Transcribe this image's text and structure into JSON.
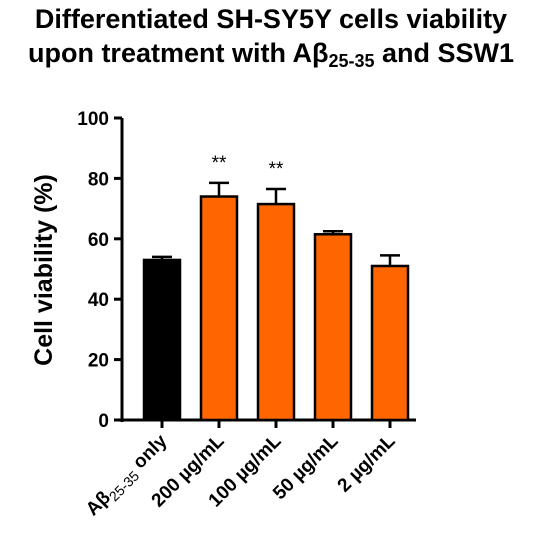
{
  "chart_data": {
    "type": "bar",
    "title_line1": "Differentiated SH-SY5Y cells viability",
    "title_line2_pre": "upon treatment with Aβ",
    "title_line2_sub": "25-35",
    "title_line2_post": " and SSW1",
    "xlabel": "",
    "ylabel": "Cell viability (%)",
    "ylim": [
      0,
      100
    ],
    "yticks": [
      "0",
      "20",
      "40",
      "60",
      "80",
      "100"
    ],
    "categories": [
      {
        "pre": "Aβ",
        "sub": "25-35",
        "post": " only"
      },
      {
        "pre": "200 µg/mL",
        "sub": "",
        "post": ""
      },
      {
        "pre": "100 µg/mL",
        "sub": "",
        "post": ""
      },
      {
        "pre": "50 µg/mL",
        "sub": "",
        "post": ""
      },
      {
        "pre": "2 µg/mL",
        "sub": "",
        "post": ""
      }
    ],
    "values": [
      53,
      74,
      71.5,
      61.5,
      51
    ],
    "errors": [
      1,
      4.5,
      5,
      1,
      3.5
    ],
    "significance": [
      "",
      "**",
      "**",
      "",
      ""
    ],
    "colors": [
      "#000000",
      "#FF6600",
      "#FF6600",
      "#FF6600",
      "#FF6600"
    ],
    "grid": false
  }
}
